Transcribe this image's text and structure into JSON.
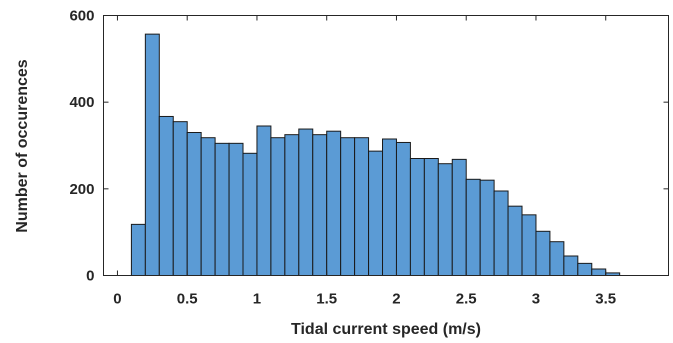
{
  "chart_data": {
    "type": "bar",
    "subtype": "histogram",
    "title": "",
    "xlabel": "Tidal current speed (m/s)",
    "ylabel": "Number of occurences",
    "xlim": [
      -0.1,
      3.95
    ],
    "ylim": [
      0,
      600
    ],
    "xticks": [
      0,
      0.5,
      1,
      1.5,
      2,
      2.5,
      3,
      3.5
    ],
    "xtick_labels": [
      "0",
      "0.5",
      "1",
      "1.5",
      "2",
      "2.5",
      "3",
      "3.5"
    ],
    "yticks": [
      0,
      200,
      400,
      600
    ],
    "ytick_labels": [
      "0",
      "200",
      "400",
      "600"
    ],
    "grid": false,
    "bar_color": "#5b9bd5",
    "edge_color": "#1a1a1a",
    "bin_width": 0.1,
    "bin_edges": [
      0.1,
      0.2,
      0.3,
      0.4,
      0.5,
      0.6,
      0.7,
      0.8,
      0.9,
      1.0,
      1.1,
      1.2,
      1.3,
      1.4,
      1.5,
      1.6,
      1.7,
      1.8,
      1.9,
      2.0,
      2.1,
      2.2,
      2.3,
      2.4,
      2.5,
      2.6,
      2.7,
      2.8,
      2.9,
      3.0,
      3.1,
      3.2,
      3.3,
      3.4,
      3.5,
      3.6
    ],
    "values": [
      118,
      557,
      367,
      355,
      330,
      318,
      305,
      305,
      282,
      345,
      318,
      325,
      338,
      325,
      333,
      318,
      318,
      287,
      315,
      307,
      270,
      270,
      258,
      268,
      222,
      220,
      195,
      160,
      140,
      102,
      78,
      45,
      28,
      15,
      6
    ]
  }
}
